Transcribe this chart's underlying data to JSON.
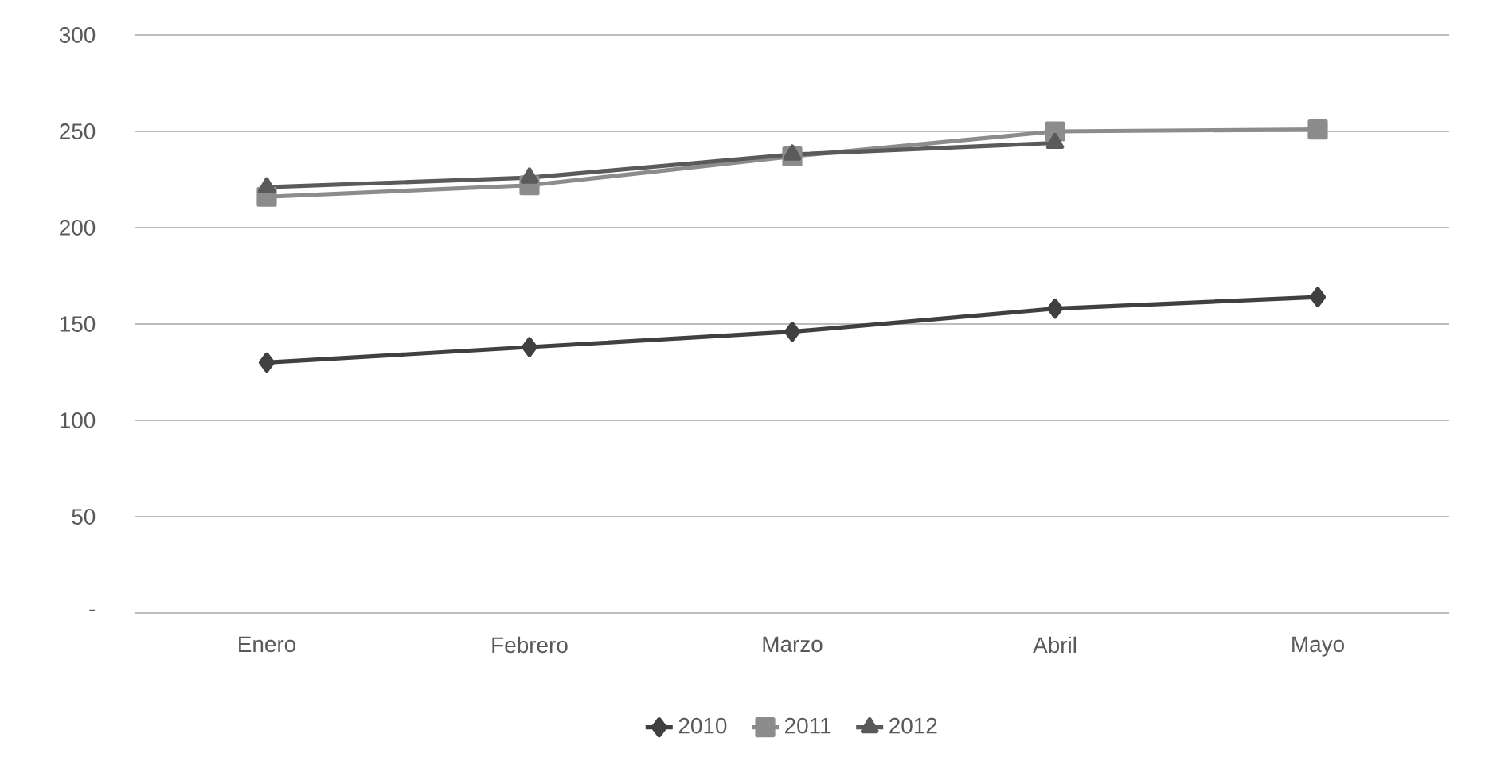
{
  "chart_data": {
    "type": "line",
    "categories": [
      "Enero",
      "Febrero",
      "Marzo",
      "Abril",
      "Mayo"
    ],
    "series": [
      {
        "name": "2010",
        "color": "#404040",
        "marker": "diamond",
        "values": [
          130,
          138,
          146,
          158,
          164
        ]
      },
      {
        "name": "2011",
        "color": "#8c8c8c",
        "marker": "square",
        "values": [
          216,
          222,
          237,
          250,
          251
        ]
      },
      {
        "name": "2012",
        "color": "#5a5a5a",
        "marker": "triangle",
        "values": [
          221,
          226,
          238,
          244,
          null
        ]
      }
    ],
    "ylim": [
      0,
      300
    ],
    "yticks": [
      {
        "value": 0,
        "label": "-"
      },
      50,
      100,
      150,
      200,
      250,
      300
    ],
    "grid": "y",
    "legend": "bottom",
    "line_style": "solid"
  }
}
